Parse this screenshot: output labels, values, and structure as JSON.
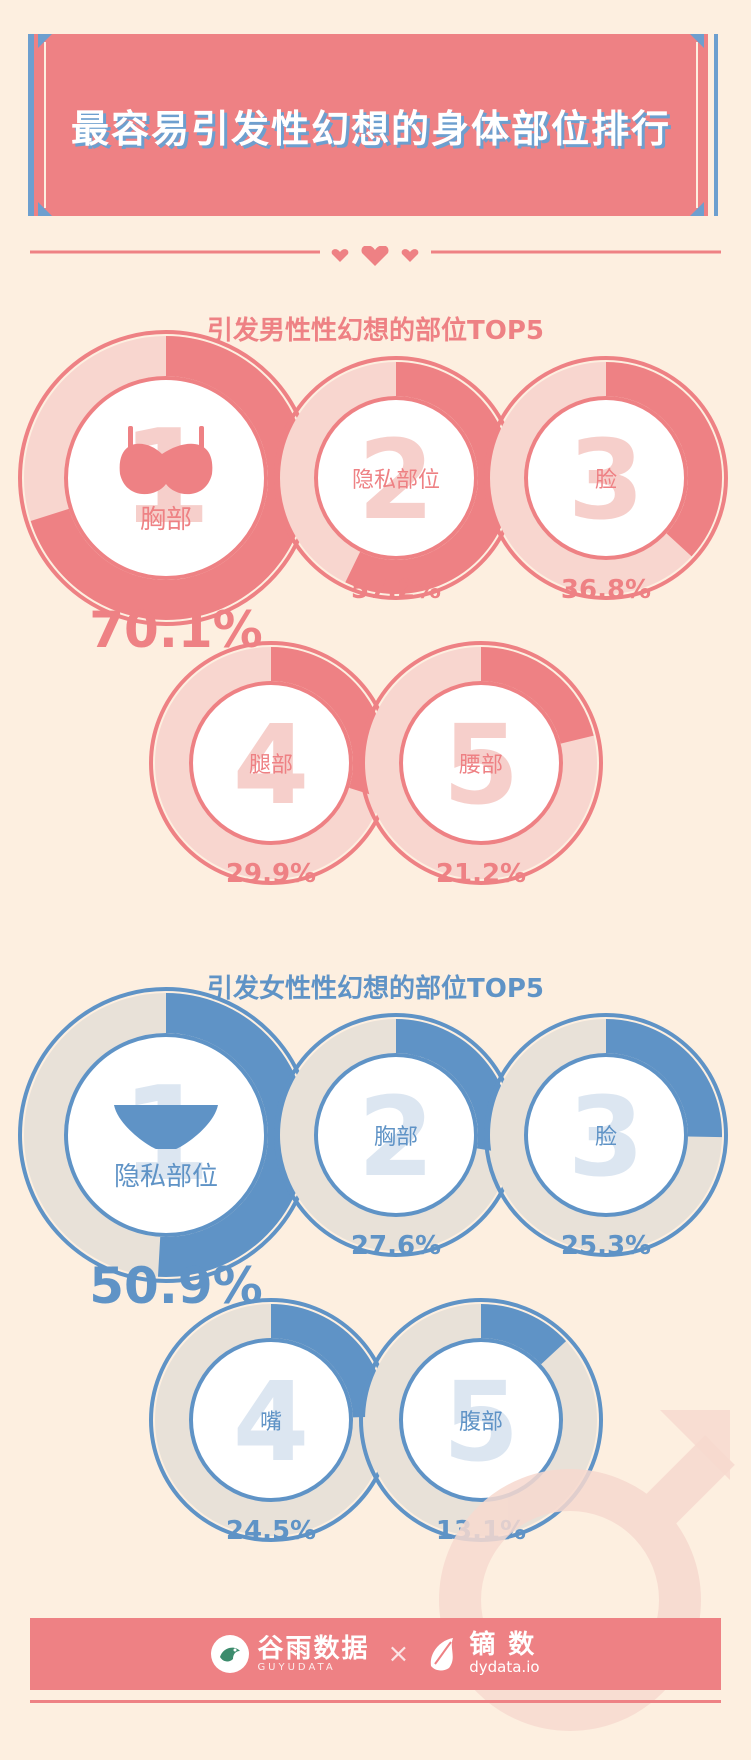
{
  "header": {
    "title": "最容易引发性幻想的身体部位排行"
  },
  "colors": {
    "male_accent": "#ee8184",
    "male_track": "#f8d6cf",
    "female_accent": "#5f93c6",
    "female_track": "#e8e1d8",
    "background": "#fdefe0"
  },
  "chart_data": [
    {
      "type": "donut",
      "title": "引发男性性幻想的部位TOP5",
      "categories": [
        "胸部",
        "隐私部位",
        "脸",
        "腿部",
        "腰部"
      ],
      "ranks": [
        "1",
        "2",
        "3",
        "4",
        "5"
      ],
      "values": [
        70.1,
        57.2,
        36.8,
        29.9,
        21.2
      ],
      "labels": [
        "70.1%",
        "57.2%",
        "36.8%",
        "29.9%",
        "21.2%"
      ],
      "icons": [
        "bra-icon",
        null,
        null,
        null,
        null
      ]
    },
    {
      "type": "donut",
      "title": "引发女性性幻想的部位TOP5",
      "categories": [
        "隐私部位",
        "胸部",
        "脸",
        "嘴",
        "腹部"
      ],
      "ranks": [
        "1",
        "2",
        "3",
        "4",
        "5"
      ],
      "values": [
        50.9,
        27.6,
        25.3,
        24.5,
        13.1
      ],
      "labels": [
        "50.9%",
        "27.6%",
        "25.3%",
        "24.5%",
        "13.1%"
      ],
      "icons": [
        "underwear-icon",
        null,
        null,
        null,
        null
      ]
    }
  ],
  "footer": {
    "brand1": "谷雨数据",
    "brand1_sub": "GUYUDATA",
    "times": "×",
    "brand2": "镝 数",
    "brand2_sub": "dydata.io"
  }
}
